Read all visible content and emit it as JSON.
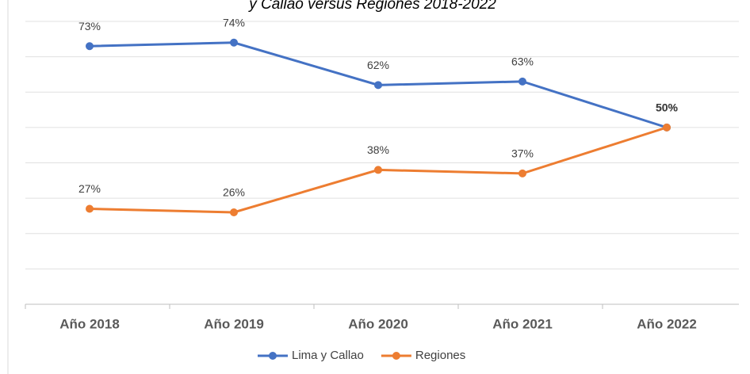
{
  "chart_data": {
    "type": "line",
    "title": "y Callao versus Regiones 2018-2022",
    "categories": [
      "Año 2018",
      "Año 2019",
      "Año 2020",
      "Año 2021",
      "Año 2022"
    ],
    "series": [
      {
        "name": "Lima y Callao",
        "color": "#4472c4",
        "values": [
          73,
          74,
          62,
          63,
          50
        ],
        "value_labels": [
          "73%",
          "74%",
          "62%",
          "63%",
          "50%"
        ]
      },
      {
        "name": "Regiones",
        "color": "#ed7d31",
        "values": [
          27,
          26,
          38,
          37,
          50
        ],
        "value_labels": [
          "27%",
          "26%",
          "38%",
          "37%",
          "50%"
        ]
      }
    ],
    "ylim": [
      0,
      80
    ],
    "yticks": [
      0,
      10,
      20,
      30,
      40,
      50,
      60,
      70,
      80
    ],
    "grid": true,
    "legend": "bottom"
  }
}
